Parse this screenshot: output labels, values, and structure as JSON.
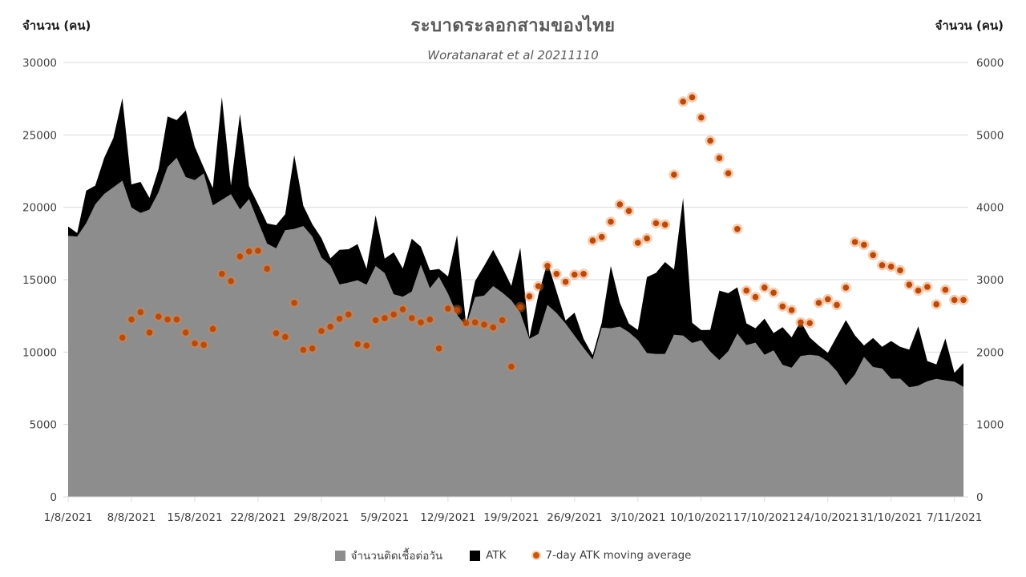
{
  "title": "ระบาดระลอกสามของไทย",
  "subtitle": "Woratanarat et al 20211110",
  "left_axis": {
    "title": "จำนวน (คน)",
    "tick_labels": [
      "30000",
      "25000",
      "20000",
      "15000",
      "10000",
      "5000",
      "0"
    ],
    "min": 0,
    "max": 30000
  },
  "right_axis": {
    "title": "จำนวน (คน)",
    "tick_labels": [
      "6000",
      "5000",
      "4000",
      "3000",
      "2000",
      "1000",
      "0"
    ],
    "min": 0,
    "max": 6000
  },
  "x_axis": {
    "tick_labels": [
      "1/8/2021",
      "8/8/2021",
      "15/8/2021",
      "22/8/2021",
      "29/8/2021",
      "5/9/2021",
      "12/9/2021",
      "19/9/2021",
      "26/9/2021",
      "3/10/2021",
      "10/10/2021",
      "17/10/2021",
      "24/10/2021",
      "31/10/2021",
      "7/11/2021"
    ],
    "days_per_tick": 7
  },
  "legend": {
    "items": [
      {
        "label": "จำนวนติดเชื้อต่อวัน",
        "marker": "square",
        "color": "#8d8d8d"
      },
      {
        "label": "ATK",
        "marker": "square",
        "color": "#000000"
      },
      {
        "label": "7-day ATK moving average",
        "marker": "dot",
        "color": "#c55a11"
      }
    ]
  },
  "colors": {
    "cases_area": "#8d8d8d",
    "atk_area": "#000000",
    "ma7_dot_core": "#b84a0c",
    "ma7_dot_halo": "rgba(237,125,49,0.4)",
    "gridline": "#d9d9d9",
    "axis_text": "#404040",
    "title_text": "#595959"
  },
  "chart_data": {
    "type": "combo-stacked-area-with-scatter",
    "title": "ระบาดระลอกสามของไทย",
    "subtitle": "Woratanarat et al 20211110",
    "x_start_label": "1/8/2021",
    "x_end_label": "7/11/2021",
    "n_days": 100,
    "left_axis_range": [
      0,
      30000
    ],
    "right_axis_range": [
      0,
      6000
    ],
    "grid": "horizontal",
    "legend_position": "bottom",
    "series": [
      {
        "name": "จำนวนติดเชื้อต่อวัน",
        "type": "area",
        "axis": "left",
        "stack": "base",
        "values": [
          18027,
          17970,
          18901,
          20200,
          20920,
          21379,
          21838,
          19983,
          19603,
          19843,
          21038,
          22782,
          23418,
          22086,
          21882,
          22342,
          20128,
          20515,
          20902,
          19851,
          20571,
          19014,
          17491,
          17165,
          18417,
          18501,
          18702,
          17984,
          16536,
          15972,
          14666,
          14802,
          14956,
          14653,
          15942,
          15452,
          13988,
          13821,
          14176,
          16031,
          14403,
          15191,
          14029,
          12583,
          11786,
          13798,
          13897,
          14555,
          14109,
          13576,
          12709,
          10919,
          11252,
          13256,
          12697,
          11975,
          11125,
          10288,
          9489,
          11678,
          11646,
          11754,
          11375,
          10828,
          9930,
          9869,
          9866,
          11200,
          11140,
          10630,
          10817,
          10035,
          9445,
          10064,
          11276,
          10486,
          10648,
          9810,
          10111,
          9122,
          8918,
          9727,
          9810,
          9742,
          9351,
          8675,
          7706,
          8452,
          9658,
          8968,
          8859,
          8165,
          8165,
          7574,
          7679,
          7982,
          8148,
          8039,
          7960,
          7592
        ]
      },
      {
        "name": "ATK",
        "type": "area",
        "axis": "left",
        "stack": "on-top",
        "values": [
          650,
          250,
          2250,
          1300,
          2500,
          3400,
          5700,
          1600,
          2150,
          800,
          1600,
          3500,
          2600,
          4600,
          2300,
          400,
          1200,
          7100,
          600,
          6600,
          900,
          1200,
          1400,
          1600,
          1100,
          5100,
          1400,
          850,
          1350,
          500,
          2400,
          2300,
          2500,
          1100,
          3500,
          1000,
          2900,
          1950,
          3650,
          1250,
          1250,
          550,
          1200,
          5500,
          150,
          1100,
          2050,
          2500,
          1750,
          1000,
          4500,
          90,
          2700,
          2950,
          1500,
          200,
          1600,
          620,
          300,
          350,
          4300,
          1650,
          600,
          700,
          5250,
          5600,
          6350,
          4500,
          9500,
          1400,
          700,
          1500,
          4800,
          4000,
          3200,
          1500,
          1000,
          2500,
          1200,
          2600,
          2100,
          2400,
          1200,
          700,
          600,
          2400,
          4500,
          2700,
          800,
          2000,
          1500,
          2600,
          2200,
          2600,
          4100,
          1400,
          1000,
          2900,
          600,
          1650
        ]
      },
      {
        "name": "7-day ATK moving average",
        "type": "scatter",
        "axis": "right",
        "values": [
          null,
          null,
          null,
          null,
          null,
          null,
          2200,
          2450,
          2550,
          2270,
          2490,
          2450,
          2450,
          2270,
          2120,
          2100,
          2320,
          3080,
          2980,
          3320,
          3390,
          3400,
          3150,
          2260,
          2210,
          2680,
          2030,
          2050,
          2290,
          2350,
          2460,
          2520,
          2110,
          2090,
          2440,
          2470,
          2520,
          2590,
          2470,
          2410,
          2450,
          2050,
          2600,
          2580,
          2400,
          2410,
          2380,
          2340,
          2440,
          1800,
          2620,
          2770,
          2910,
          3190,
          3080,
          2970,
          3070,
          3080,
          3540,
          3590,
          3800,
          4040,
          3950,
          3510,
          3570,
          3780,
          3760,
          4450,
          5460,
          5520,
          5240,
          4920,
          4680,
          4470,
          3700,
          2850,
          2760,
          2890,
          2820,
          2630,
          2580,
          2410,
          2400,
          2680,
          2730,
          2650,
          2890,
          3520,
          3480,
          3340,
          3200,
          3180,
          3130,
          2930,
          2850,
          2900,
          2660,
          2860,
          2720,
          2720
        ]
      }
    ]
  }
}
